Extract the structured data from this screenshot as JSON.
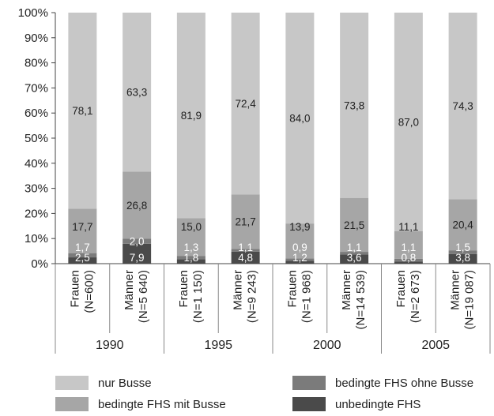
{
  "chart_data": {
    "type": "bar",
    "stacked": true,
    "percent": true,
    "ylim": [
      0,
      100
    ],
    "y_ticks": [
      "0%",
      "10%",
      "20%",
      "30%",
      "40%",
      "50%",
      "60%",
      "70%",
      "80%",
      "90%",
      "100%"
    ],
    "categories": [
      {
        "line1": "Frauen",
        "line2": "(N=600)"
      },
      {
        "line1": "Männer",
        "line2": "(N=5 640)"
      },
      {
        "line1": "Frauen",
        "line2": "(N=1 150)"
      },
      {
        "line1": "Männer",
        "line2": "(N=9 243)"
      },
      {
        "line1": "Frauen",
        "line2": "(N=1 968)"
      },
      {
        "line1": "Männer",
        "line2": "(N=14 539)"
      },
      {
        "line1": "Frauen",
        "line2": "(N=2 673)"
      },
      {
        "line1": "Männer",
        "line2": "(N=19 087)"
      }
    ],
    "groups": [
      "1990",
      "1995",
      "2000",
      "2005"
    ],
    "series": [
      {
        "name": "unbedingte FHS",
        "color": "#4a4a4a",
        "values": [
          2.5,
          7.9,
          1.8,
          4.8,
          1.2,
          3.6,
          0.8,
          3.8
        ],
        "labels": [
          "2,5",
          "7,9",
          "1,8",
          "4,8",
          "1,2",
          "3,6",
          "0,8",
          "3,8"
        ]
      },
      {
        "name": "bedingte FHS ohne Busse",
        "color": "#7b7b7b",
        "values": [
          1.7,
          2.0,
          1.3,
          1.1,
          0.9,
          1.1,
          1.1,
          1.5
        ],
        "labels": [
          "1,7",
          "2,0",
          "1,3",
          "1,1",
          "0,9",
          "1,1",
          "1,1",
          "1,5"
        ]
      },
      {
        "name": "bedingte FHS mit Busse",
        "color": "#a6a6a6",
        "values": [
          17.7,
          26.8,
          15.0,
          21.7,
          13.9,
          21.5,
          11.1,
          20.4
        ],
        "labels": [
          "17,7",
          "26,8",
          "15,0",
          "21,7",
          "13,9",
          "21,5",
          "11,1",
          "20,4"
        ]
      },
      {
        "name": "nur Busse",
        "color": "#c7c7c7",
        "values": [
          78.1,
          63.3,
          81.9,
          72.4,
          84.0,
          73.8,
          87.0,
          74.3
        ],
        "labels": [
          "78,1",
          "63,3",
          "81,9",
          "72,4",
          "84,0",
          "73,8",
          "87,0",
          "74,3"
        ]
      }
    ],
    "legend": [
      {
        "name": "nur Busse",
        "color": "#c7c7c7"
      },
      {
        "name": "bedingte FHS ohne Busse",
        "color": "#7b7b7b"
      },
      {
        "name": "bedingte FHS mit Busse",
        "color": "#a6a6a6"
      },
      {
        "name": "unbedingte FHS",
        "color": "#4a4a4a"
      }
    ],
    "legend_position": "bottom",
    "grid": false
  }
}
